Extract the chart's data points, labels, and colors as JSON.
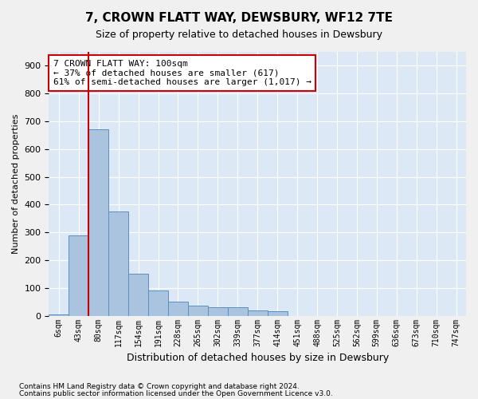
{
  "title": "7, CROWN FLATT WAY, DEWSBURY, WF12 7TE",
  "subtitle": "Size of property relative to detached houses in Dewsbury",
  "xlabel": "Distribution of detached houses by size in Dewsbury",
  "ylabel": "Number of detached properties",
  "bar_color": "#aac4e0",
  "bar_edge_color": "#5a8fc0",
  "background_color": "#dce8f5",
  "grid_color": "#ffffff",
  "vline_color": "#cc0000",
  "annotation_text": "7 CROWN FLATT WAY: 100sqm\n← 37% of detached houses are smaller (617)\n61% of semi-detached houses are larger (1,017) →",
  "annotation_box_color": "#ffffff",
  "annotation_box_edge_color": "#cc0000",
  "bin_labels": [
    "6sqm",
    "43sqm",
    "80sqm",
    "117sqm",
    "154sqm",
    "191sqm",
    "228sqm",
    "265sqm",
    "302sqm",
    "339sqm",
    "377sqm",
    "414sqm",
    "451sqm",
    "488sqm",
    "525sqm",
    "562sqm",
    "599sqm",
    "636sqm",
    "673sqm",
    "710sqm",
    "747sqm"
  ],
  "bar_values": [
    5,
    290,
    670,
    375,
    150,
    90,
    50,
    35,
    30,
    30,
    20,
    15,
    0,
    0,
    0,
    0,
    0,
    0,
    0,
    0,
    0
  ],
  "ylim": [
    0,
    950
  ],
  "yticks": [
    0,
    100,
    200,
    300,
    400,
    500,
    600,
    700,
    800,
    900
  ],
  "vline_position": 1.5,
  "footnote1": "Contains HM Land Registry data © Crown copyright and database right 2024.",
  "footnote2": "Contains public sector information licensed under the Open Government Licence v3.0."
}
